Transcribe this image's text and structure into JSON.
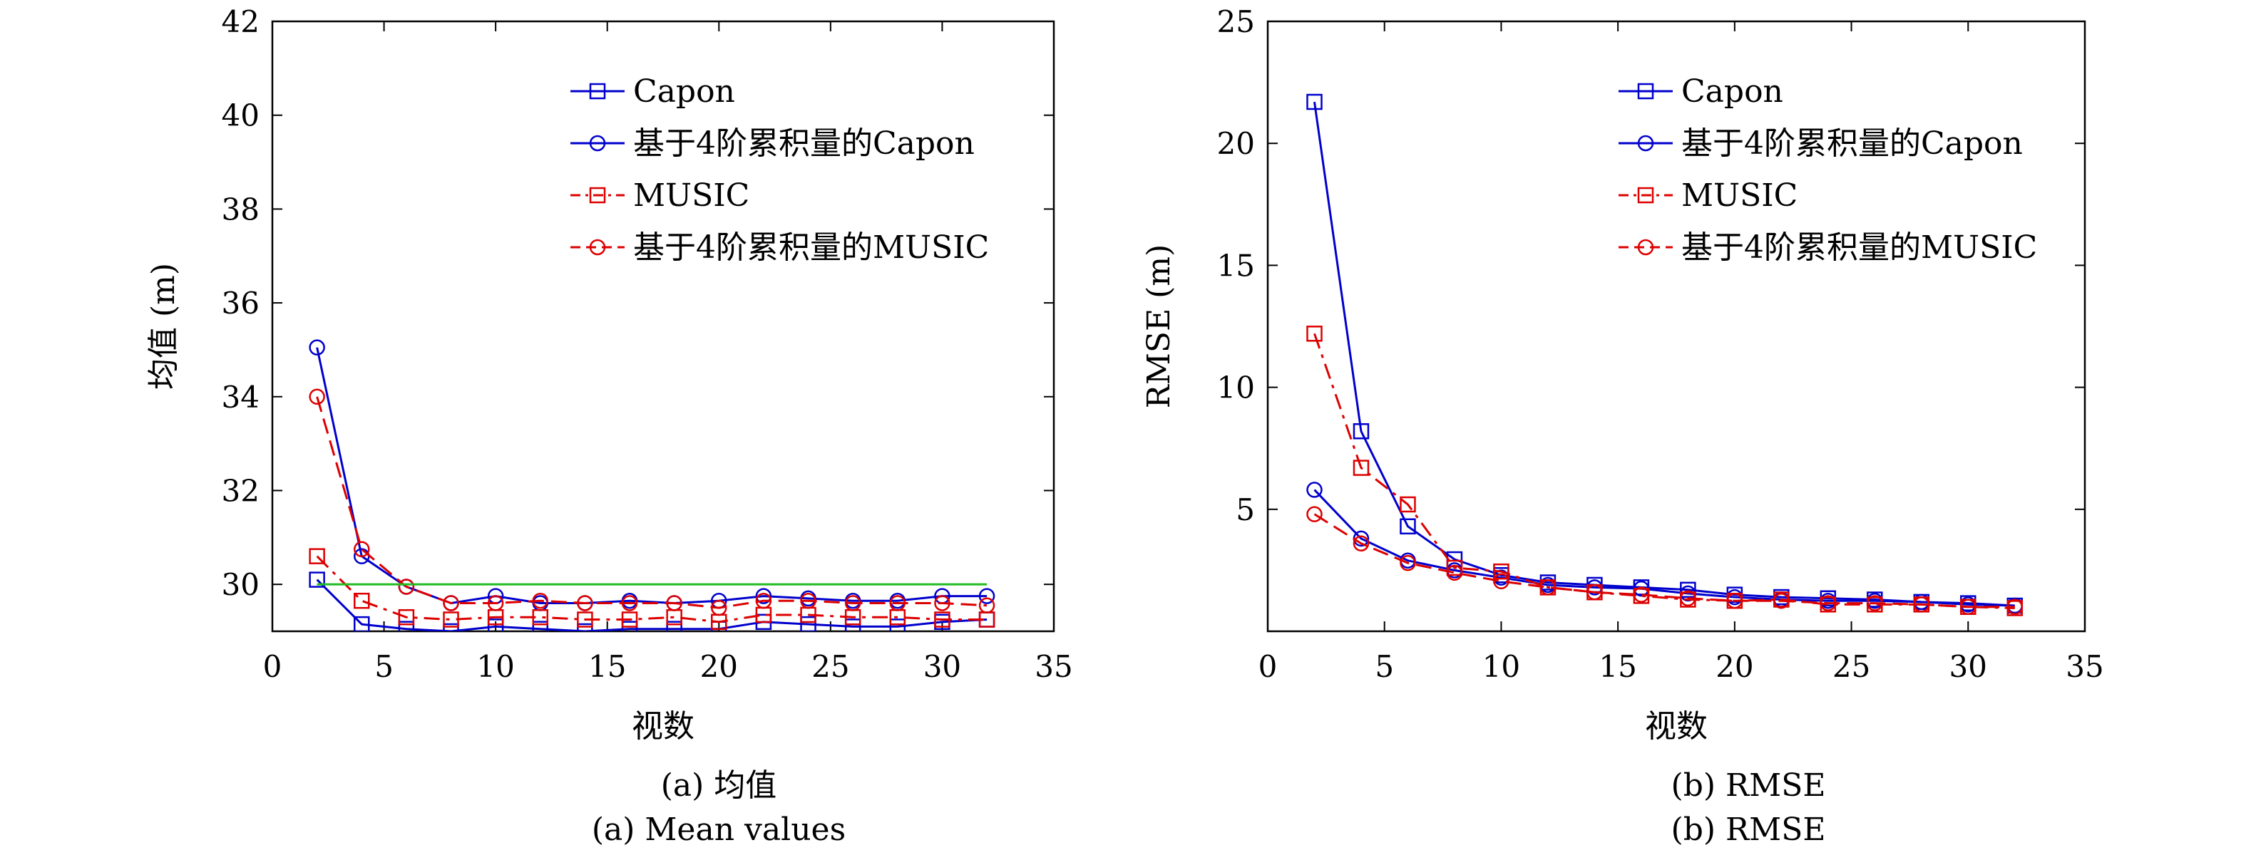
{
  "colors": {
    "blue": "#0000cc",
    "red": "#dd0000",
    "green": "#22bb22"
  },
  "captions": {
    "a_cn": "(a) 均值",
    "a_en": "(a) Mean values",
    "b_cn": "(b) RMSE",
    "b_en": "(b) RMSE"
  },
  "chart_data": [
    {
      "type": "line",
      "id": "mean",
      "xlabel": "视数",
      "ylabel": "均值 (m)",
      "xlim": [
        0,
        35
      ],
      "ylim": [
        29,
        42
      ],
      "xticks": [
        0,
        5,
        10,
        15,
        20,
        25,
        30,
        35
      ],
      "yticks": [
        30,
        32,
        34,
        36,
        38,
        40,
        42
      ],
      "grid": false,
      "legend_position": "top-right",
      "x": [
        2,
        4,
        6,
        8,
        10,
        12,
        14,
        16,
        18,
        20,
        22,
        24,
        26,
        28,
        30,
        32
      ],
      "series": [
        {
          "name": "Capon",
          "color": "blue",
          "dash": "solid",
          "marker": "square",
          "values": [
            30.1,
            29.15,
            29.05,
            29.0,
            29.1,
            29.05,
            29.0,
            29.05,
            29.05,
            29.05,
            29.2,
            29.15,
            29.1,
            29.1,
            29.2,
            29.25
          ]
        },
        {
          "name": "基于4阶累积量的Capon",
          "color": "blue",
          "dash": "solid",
          "marker": "circle",
          "values": [
            35.05,
            30.6,
            29.95,
            29.6,
            29.75,
            29.6,
            29.6,
            29.65,
            29.6,
            29.65,
            29.75,
            29.7,
            29.65,
            29.65,
            29.75,
            29.75
          ]
        },
        {
          "name": "MUSIC",
          "color": "red",
          "dash": "dashdot",
          "marker": "square",
          "values": [
            30.6,
            29.65,
            29.3,
            29.25,
            29.3,
            29.3,
            29.25,
            29.25,
            29.3,
            29.2,
            29.35,
            29.35,
            29.3,
            29.3,
            29.25,
            29.25
          ]
        },
        {
          "name": "基于4阶累积量的MUSIC",
          "color": "red",
          "dash": "dashed",
          "marker": "circle",
          "values": [
            34.0,
            30.75,
            29.95,
            29.6,
            29.6,
            29.65,
            29.6,
            29.6,
            29.6,
            29.5,
            29.65,
            29.65,
            29.6,
            29.6,
            29.6,
            29.55
          ]
        },
        {
          "name": "",
          "color": "green",
          "dash": "solid",
          "marker": "none",
          "x": [
            2,
            32
          ],
          "values": [
            30,
            30
          ]
        }
      ]
    },
    {
      "type": "line",
      "id": "rmse",
      "xlabel": "视数",
      "ylabel": "RMSE (m)",
      "xlim": [
        0,
        35
      ],
      "ylim": [
        0,
        25
      ],
      "xticks": [
        0,
        5,
        10,
        15,
        20,
        25,
        30,
        35
      ],
      "yticks": [
        5,
        10,
        15,
        20,
        25
      ],
      "grid": false,
      "legend_position": "top-right",
      "x": [
        2,
        4,
        6,
        8,
        10,
        12,
        14,
        16,
        18,
        20,
        22,
        24,
        26,
        28,
        30,
        32
      ],
      "series": [
        {
          "name": "Capon",
          "color": "blue",
          "dash": "solid",
          "marker": "square",
          "values": [
            21.7,
            8.2,
            4.3,
            2.95,
            2.3,
            2.0,
            1.9,
            1.8,
            1.7,
            1.5,
            1.4,
            1.35,
            1.3,
            1.2,
            1.15,
            1.05
          ]
        },
        {
          "name": "基于4阶累积量的Capon",
          "color": "blue",
          "dash": "solid",
          "marker": "circle",
          "values": [
            5.8,
            3.8,
            2.9,
            2.5,
            2.2,
            1.9,
            1.8,
            1.75,
            1.55,
            1.4,
            1.3,
            1.25,
            1.25,
            1.2,
            1.1,
            1.05
          ]
        },
        {
          "name": "MUSIC",
          "color": "red",
          "dash": "dashdot",
          "marker": "square",
          "values": [
            12.2,
            6.7,
            5.2,
            2.6,
            2.45,
            1.8,
            1.6,
            1.45,
            1.3,
            1.25,
            1.3,
            1.1,
            1.1,
            1.1,
            1.0,
            0.95
          ]
        },
        {
          "name": "基于4阶累积量的MUSIC",
          "color": "red",
          "dash": "dashed",
          "marker": "circle",
          "values": [
            4.8,
            3.6,
            2.8,
            2.4,
            2.05,
            1.8,
            1.6,
            1.5,
            1.35,
            1.25,
            1.25,
            1.15,
            1.15,
            1.1,
            1.0,
            1.0
          ]
        }
      ]
    }
  ]
}
